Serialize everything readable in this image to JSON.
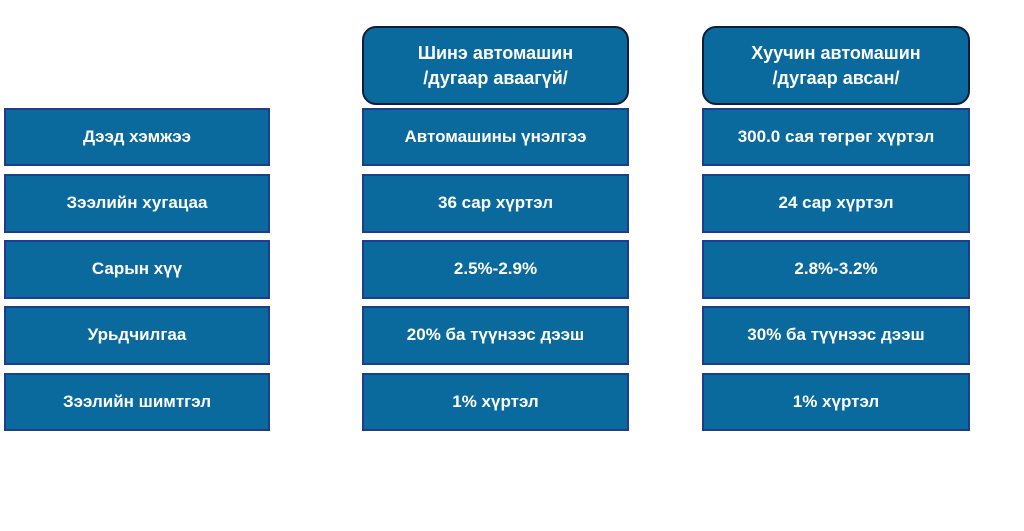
{
  "headers": {
    "new_car": {
      "line1": "Шинэ автомашин",
      "line2": "/дугаар аваагүй/"
    },
    "used_car": {
      "line1": "Хуучин автомашин",
      "line2": "/дугаар авсан/"
    }
  },
  "rows": [
    {
      "label": "Дээд хэмжээ",
      "new_car": "Автомашины үнэлгээ",
      "used_car": "300.0 сая төгрөг хүртэл"
    },
    {
      "label": "Зээлийн хугацаа",
      "new_car": "36 сар хүртэл",
      "used_car": "24 сар хүртэл"
    },
    {
      "label": "Сарын хүү",
      "new_car": "2.5%-2.9%",
      "used_car": "2.8%-3.2%"
    },
    {
      "label": "Урьдчилгаа",
      "new_car": "20% ба түүнээс дээш",
      "used_car": "30% ба түүнээс дээш"
    },
    {
      "label": "Зээлийн шимтгэл",
      "new_car": "1% хүртэл",
      "used_car": "1% хүртэл"
    }
  ],
  "colors": {
    "cell_fill": "#0a6a9e",
    "cell_border": "#1f3d8f",
    "header_border": "#101c3a",
    "text": "#ffffff"
  }
}
